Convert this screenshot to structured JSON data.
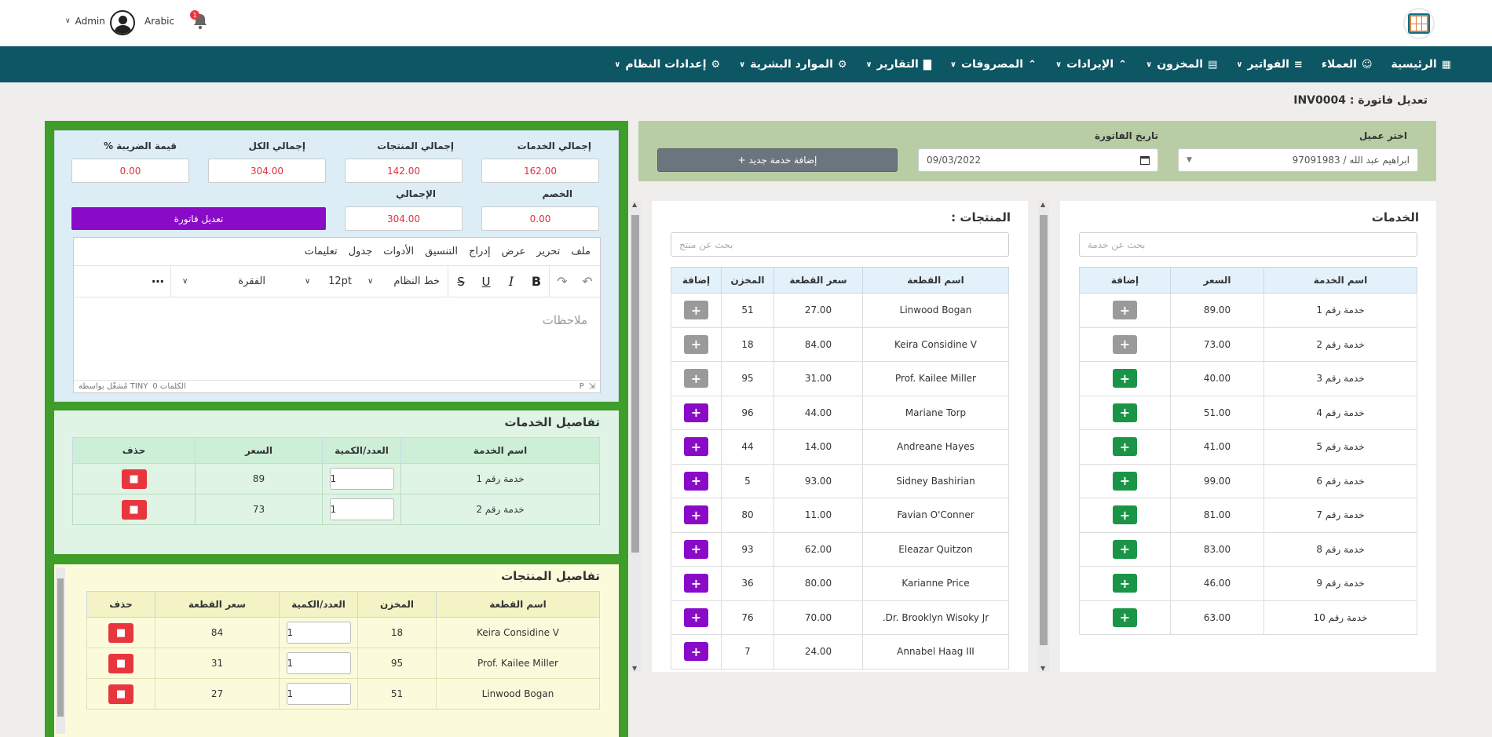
{
  "header": {
    "user": "Admin",
    "language": "Arabic",
    "notification_count": "1"
  },
  "nav": [
    {
      "label": "الرئيسية",
      "icon": "dashboard-icon",
      "dropdown": false
    },
    {
      "label": "العملاء",
      "icon": "user-icon",
      "dropdown": false
    },
    {
      "label": "الفواتير",
      "icon": "document-icon",
      "dropdown": true
    },
    {
      "label": "المخزون",
      "icon": "store-icon",
      "dropdown": true
    },
    {
      "label": "الإيرادات",
      "icon": "chevrons-up-icon",
      "dropdown": true
    },
    {
      "label": "المصروفات",
      "icon": "chevrons-up-icon",
      "dropdown": true
    },
    {
      "label": "التقارير",
      "icon": "chart-icon",
      "dropdown": true
    },
    {
      "label": "الموارد البشرية",
      "icon": "gear-icon",
      "dropdown": true
    },
    {
      "label": "إعدادات النظام",
      "icon": "gear-icon",
      "dropdown": true
    }
  ],
  "page_title": "تعديل فاتورة : INV0004",
  "form": {
    "client_label": "اختر عميل",
    "client_value": "ابراهيم عبد الله / 97091983",
    "date_label": "تاريخ الفاتورة",
    "date_value": "09/03/2022",
    "add_service_button": "+ إضافة خدمة جديد"
  },
  "services": {
    "title": "الخدمات",
    "search_placeholder": "بحث عن خدمة",
    "headers": [
      "اسم الخدمة",
      "السعر",
      "إضافة"
    ],
    "rows": [
      {
        "name": "خدمة رقم 1",
        "price": "89.00",
        "state": "gray"
      },
      {
        "name": "خدمة رقم 2",
        "price": "73.00",
        "state": "gray"
      },
      {
        "name": "خدمة رقم 3",
        "price": "40.00",
        "state": "green"
      },
      {
        "name": "خدمة رقم 4",
        "price": "51.00",
        "state": "green"
      },
      {
        "name": "خدمة رقم 5",
        "price": "41.00",
        "state": "green"
      },
      {
        "name": "خدمة رقم 6",
        "price": "99.00",
        "state": "green"
      },
      {
        "name": "خدمة رقم 7",
        "price": "81.00",
        "state": "green"
      },
      {
        "name": "خدمة رقم 8",
        "price": "83.00",
        "state": "green"
      },
      {
        "name": "خدمة رقم 9",
        "price": "46.00",
        "state": "green"
      },
      {
        "name": "خدمة رقم 10",
        "price": "63.00",
        "state": "green"
      }
    ]
  },
  "products": {
    "title": "المنتجات :",
    "search_placeholder": "بحث عن منتج",
    "headers": [
      "اسم القطعة",
      "سعر القطعة",
      "المخزن",
      "إضافة"
    ],
    "rows": [
      {
        "name": "Linwood Bogan",
        "price": "27.00",
        "stock": "51",
        "state": "gray"
      },
      {
        "name": "Keira Considine V",
        "price": "84.00",
        "stock": "18",
        "state": "gray"
      },
      {
        "name": "Prof. Kailee Miller",
        "price": "31.00",
        "stock": "95",
        "state": "gray"
      },
      {
        "name": "Mariane Torp",
        "price": "44.00",
        "stock": "96",
        "state": "purple"
      },
      {
        "name": "Andreane Hayes",
        "price": "14.00",
        "stock": "44",
        "state": "purple"
      },
      {
        "name": "Sidney Bashirian",
        "price": "93.00",
        "stock": "5",
        "state": "purple"
      },
      {
        "name": "Favian O'Conner",
        "price": "11.00",
        "stock": "80",
        "state": "purple"
      },
      {
        "name": "Eleazar Quitzon",
        "price": "62.00",
        "stock": "93",
        "state": "purple"
      },
      {
        "name": "Karianne Price",
        "price": "80.00",
        "stock": "36",
        "state": "purple"
      },
      {
        "name": "Dr. Brooklyn Wisoky Jr.",
        "price": "70.00",
        "stock": "76",
        "state": "purple"
      },
      {
        "name": "Annabel Haag III",
        "price": "24.00",
        "stock": "7",
        "state": "purple"
      }
    ]
  },
  "summary": {
    "services_total_label": "إجمالي الخدمات",
    "services_total": "162.00",
    "products_total_label": "إجمالي المنتجات",
    "products_total": "142.00",
    "all_total_label": "إجمالي الكل",
    "all_total": "304.00",
    "tax_label": "قيمة الضريبة %",
    "tax": "0.00",
    "discount_label": "الخصم",
    "discount": "0.00",
    "grand_total_label": "الإجمالي",
    "grand_total": "304.00",
    "edit_button": "تعديل فاتورة"
  },
  "editor": {
    "menu": [
      "ملف",
      "تحرير",
      "عرض",
      "إدراج",
      "التنسيق",
      "الأدوات",
      "جدول",
      "تعليمات"
    ],
    "font": "خط النظام",
    "size": "12pt",
    "block": "الفقرة",
    "placeholder": "ملاحظات",
    "status_p": "P",
    "word_count": "0 الكلمات",
    "powered_by": "مُشغّل بواسطة TINY"
  },
  "service_details": {
    "title": "تفاصيل الخدمات",
    "headers": [
      "اسم الخدمة",
      "العدد/الكمية",
      "السعر",
      "حذف"
    ],
    "rows": [
      {
        "name": "خدمة رقم 1",
        "qty": "1",
        "price": "89"
      },
      {
        "name": "خدمة رقم 2",
        "qty": "1",
        "price": "73"
      }
    ]
  },
  "product_details": {
    "title": "تفاصيل المنتجات",
    "headers": [
      "اسم القطعة",
      "المخزن",
      "العدد/الكمية",
      "سعر القطعة",
      "حذف"
    ],
    "rows": [
      {
        "name": "Keira Considine V",
        "stock": "18",
        "qty": "1",
        "price": "84"
      },
      {
        "name": "Prof. Kailee Miller",
        "stock": "95",
        "qty": "1",
        "price": "31"
      },
      {
        "name": "Linwood Bogan",
        "stock": "51",
        "qty": "1",
        "price": "27"
      }
    ]
  },
  "colors": {
    "navbar": "#0d5663",
    "left_panel": "#3f9d2a",
    "purple": "#8a0bc7",
    "green": "#1a9548",
    "red": "#e8363f"
  }
}
